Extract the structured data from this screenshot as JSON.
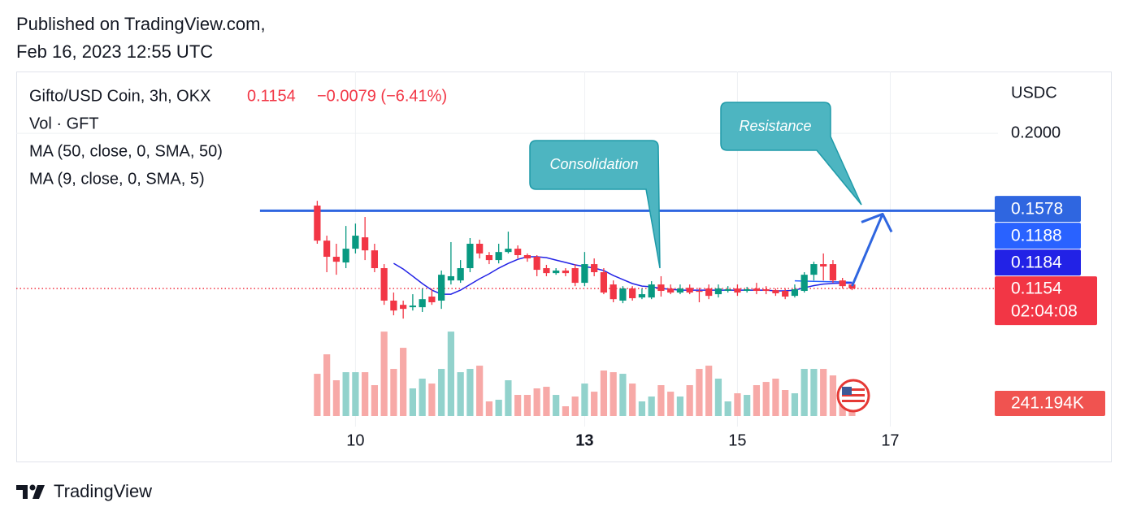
{
  "header": {
    "line1": "Published on TradingView.com,",
    "line2": "Feb 16, 2023 12:55 UTC"
  },
  "footer": {
    "brand": "TradingView"
  },
  "chart_data": {
    "type": "candlestick",
    "title": "Gifto/USD Coin, 3h, OKX",
    "change_label": "−0.0079 (−6.41%)",
    "currency": "USDC",
    "countdown": "02:04:08",
    "up_color": "#089981",
    "down_color": "#f23645",
    "x": [
      9.5,
      9.625,
      9.75,
      9.875,
      10,
      10.125,
      10.25,
      10.375,
      10.5,
      10.625,
      10.75,
      10.875,
      11,
      11.125,
      11.25,
      11.375,
      11.5,
      11.625,
      11.75,
      11.875,
      12,
      12.125,
      12.25,
      12.375,
      12.5,
      12.625,
      12.75,
      12.875,
      13,
      13.125,
      13.25,
      13.375,
      13.5,
      13.625,
      13.75,
      13.875,
      14,
      14.125,
      14.25,
      14.375,
      14.5,
      14.625,
      14.75,
      14.875,
      15,
      15.125,
      15.25,
      15.375,
      15.5,
      15.625,
      15.75,
      15.875,
      16,
      16.125,
      16.25,
      16.375,
      16.5
    ],
    "open": [
      0.1606,
      0.1415,
      0.1327,
      0.1296,
      0.1371,
      0.1433,
      0.1362,
      0.1265,
      0.1088,
      0.1065,
      0.1052,
      0.1052,
      0.111,
      0.1088,
      0.1198,
      0.1198,
      0.1265,
      0.1398,
      0.1336,
      0.1309,
      0.1353,
      0.1371,
      0.1336,
      0.1327,
      0.1265,
      0.1238,
      0.1252,
      0.1265,
      0.1185,
      0.1287,
      0.1243,
      0.1176,
      0.1088,
      0.1154,
      0.1105,
      0.1105,
      0.1176,
      0.1154,
      0.1132,
      0.1158,
      0.1141,
      0.1154,
      0.1123,
      0.1141,
      0.1154,
      0.1141,
      0.1154,
      0.115,
      0.1145,
      0.1141,
      0.1114,
      0.1141,
      0.1229,
      0.1287,
      0.1287,
      0.1198,
      0.1176
    ],
    "high": [
      0.1632,
      0.1442,
      0.1398,
      0.1495,
      0.1508,
      0.1544,
      0.1398,
      0.1287,
      0.1132,
      0.1088,
      0.1123,
      0.1154,
      0.1154,
      0.1252,
      0.1407,
      0.1309,
      0.1429,
      0.142,
      0.1353,
      0.1398,
      0.1464,
      0.1389,
      0.1345,
      0.1336,
      0.1283,
      0.1265,
      0.1265,
      0.1287,
      0.1353,
      0.1318,
      0.1265,
      0.1198,
      0.1167,
      0.1167,
      0.1154,
      0.1194,
      0.1221,
      0.1176,
      0.1176,
      0.1176,
      0.1158,
      0.1176,
      0.1176,
      0.1167,
      0.1176,
      0.1163,
      0.1185,
      0.1167,
      0.1154,
      0.1154,
      0.1176,
      0.1243,
      0.13,
      0.1345,
      0.1309,
      0.1212,
      0.1185
    ],
    "low": [
      0.1398,
      0.1243,
      0.1229,
      0.1265,
      0.1345,
      0.1309,
      0.1243,
      0.1065,
      0.1008,
      0.099,
      0.1034,
      0.1026,
      0.1065,
      0.1043,
      0.1176,
      0.1185,
      0.1243,
      0.1318,
      0.1287,
      0.1291,
      0.1345,
      0.1318,
      0.13,
      0.1221,
      0.1221,
      0.1229,
      0.1221,
      0.1167,
      0.1167,
      0.1221,
      0.1123,
      0.1079,
      0.1074,
      0.1088,
      0.1096,
      0.1096,
      0.111,
      0.1123,
      0.1123,
      0.1123,
      0.1079,
      0.1096,
      0.1105,
      0.1132,
      0.1114,
      0.1132,
      0.1123,
      0.1123,
      0.1114,
      0.1096,
      0.1105,
      0.1132,
      0.1198,
      0.1198,
      0.1185,
      0.1154,
      0.1145
    ],
    "close": [
      0.1415,
      0.1327,
      0.13,
      0.1371,
      0.1442,
      0.1362,
      0.1265,
      0.1088,
      0.1034,
      0.1043,
      0.1061,
      0.1096,
      0.1079,
      0.1229,
      0.1221,
      0.1265,
      0.1398,
      0.1345,
      0.1309,
      0.1353,
      0.1371,
      0.1336,
      0.1318,
      0.1256,
      0.1238,
      0.1252,
      0.1238,
      0.1185,
      0.1287,
      0.1243,
      0.1132,
      0.1096,
      0.1154,
      0.1101,
      0.1123,
      0.1176,
      0.1141,
      0.1132,
      0.1154,
      0.1132,
      0.1136,
      0.1114,
      0.1154,
      0.115,
      0.1132,
      0.115,
      0.1141,
      0.1141,
      0.1128,
      0.111,
      0.115,
      0.1229,
      0.1287,
      0.1274,
      0.1198,
      0.1167,
      0.1154
    ],
    "volume": {
      "name": "Vol · GFT",
      "last_label": "241.194K",
      "label_color": "#f05350",
      "up_color": "#92d2cc",
      "down_color": "#f7a9a7",
      "ylim": [
        0,
        6400000
      ],
      "values": [
        784000,
        1146000,
        664000,
        814000,
        814000,
        814000,
        573000,
        1568000,
        875000,
        1267000,
        513000,
        694000,
        603000,
        875000,
        1568000,
        814000,
        875000,
        935000,
        271000,
        302000,
        664000,
        392000,
        392000,
        513000,
        543000,
        392000,
        181000,
        362000,
        603000,
        452000,
        845000,
        814000,
        784000,
        603000,
        271000,
        362000,
        573000,
        452000,
        362000,
        573000,
        875000,
        935000,
        694000,
        271000,
        422000,
        392000,
        573000,
        633000,
        694000,
        483000,
        422000,
        875000,
        875000,
        875000,
        754000,
        483000,
        241194
      ]
    },
    "series": [
      {
        "name": "MA (50, close, 0, SMA, 50)",
        "color": "#2962ff",
        "values": [
          null,
          null,
          null,
          null,
          null,
          null,
          null,
          null,
          null,
          null,
          null,
          null,
          null,
          null,
          null,
          null,
          null,
          null,
          null,
          null,
          null,
          null,
          null,
          null,
          null,
          null,
          null,
          null,
          null,
          null,
          null,
          null,
          null,
          null,
          null,
          null,
          null,
          null,
          null,
          null,
          null,
          null,
          null,
          null,
          null,
          null,
          null,
          null,
          null,
          null,
          0.1196,
          0.1194,
          0.1193,
          0.1192,
          0.1191,
          0.119,
          0.1188
        ]
      },
      {
        "name": "MA (9, close, 0, SMA, 5)",
        "color": "#2222e6",
        "values": [
          null,
          null,
          null,
          null,
          null,
          null,
          null,
          null,
          0.1291,
          0.126,
          0.1221,
          0.1181,
          0.1145,
          0.1123,
          0.1123,
          0.1145,
          0.1176,
          0.1207,
          0.1234,
          0.1265,
          0.1291,
          0.1313,
          0.1327,
          0.1327,
          0.1322,
          0.1309,
          0.1296,
          0.1283,
          0.1274,
          0.1265,
          0.1252,
          0.1225,
          0.1203,
          0.1181,
          0.1167,
          0.1163,
          0.1154,
          0.115,
          0.1145,
          0.1145,
          0.1145,
          0.1145,
          0.1145,
          0.1145,
          0.1145,
          0.1145,
          0.1145,
          0.1145,
          0.1141,
          0.1141,
          0.1145,
          0.1158,
          0.117,
          0.1178,
          0.1182,
          0.1184,
          0.1184
        ]
      }
    ],
    "resistance": {
      "value": 0.1578,
      "x_start": 8.75,
      "color": "#2f66e0"
    },
    "arrow": {
      "x": [
        16.5,
        16.9
      ],
      "y": [
        0.1167,
        0.156
      ],
      "color": "#2f66e0"
    },
    "annotations": [
      "Consolidation",
      "Resistance"
    ],
    "xlim": [
      5.56,
      18.41
    ],
    "xticks": [
      10,
      13,
      15,
      17
    ],
    "ylim": [
      0.0459,
      0.2337
    ],
    "yticks": [
      {
        "value": 0.2,
        "label": "0.2000"
      }
    ]
  }
}
